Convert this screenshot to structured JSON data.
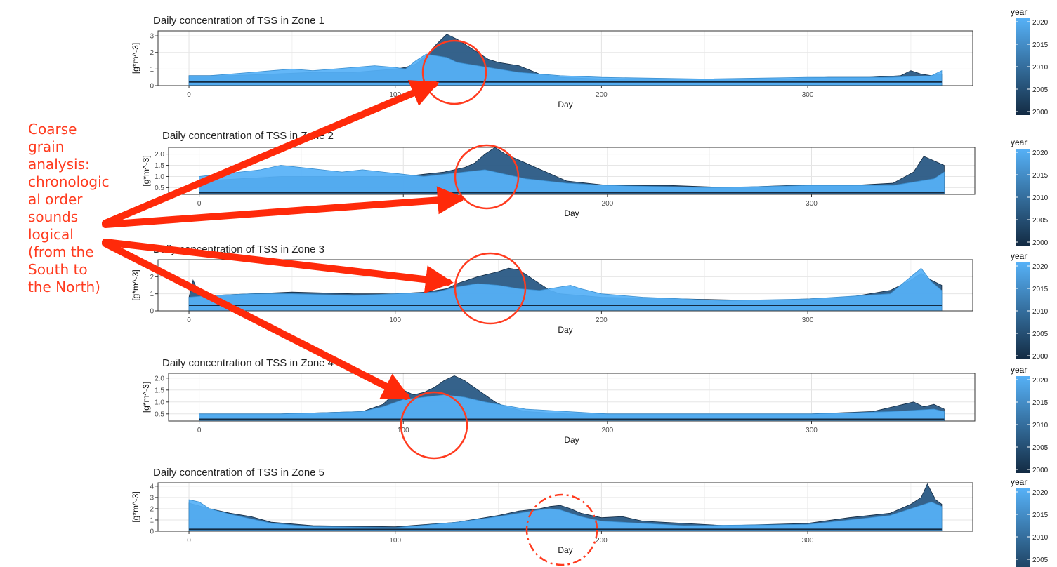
{
  "annotation": {
    "text": "Coarse\ngrain\nanalysis:\nchronologic\nal order\nsounds\nlogical\n(from the\nSouth to\nthe North)",
    "color": "#ff3b1f"
  },
  "legend": {
    "title": "year",
    "ticks": [
      "2020",
      "2015",
      "2010",
      "2005",
      "2000"
    ],
    "color_low": "#132b43",
    "color_high": "#56b1f7"
  },
  "chart_data": [
    {
      "type": "area",
      "title": "Daily concentration of TSS in Zone 1",
      "xlabel": "Day",
      "ylabel": "[g*m^-3]",
      "xlim": [
        -15,
        380
      ],
      "ylim": [
        0,
        3.3
      ],
      "x_ticks": [
        "0",
        "100",
        "200",
        "300"
      ],
      "y_ticks": [
        "0",
        "1",
        "2",
        "3"
      ],
      "x_data_start": 0,
      "grid": true,
      "series": [
        {
          "year_group": "dark",
          "x": [
            0,
            20,
            40,
            60,
            80,
            90,
            100,
            105,
            110,
            115,
            120,
            125,
            130,
            135,
            140,
            145,
            150,
            155,
            160,
            170,
            180,
            200,
            230,
            260,
            290,
            310,
            330,
            345,
            350,
            355,
            360,
            365
          ],
          "values": [
            0.6,
            0.6,
            0.7,
            0.8,
            0.8,
            0.9,
            1.0,
            1.1,
            1.3,
            1.8,
            2.5,
            3.1,
            2.8,
            2.4,
            2.0,
            1.6,
            1.4,
            1.3,
            1.2,
            0.7,
            0.5,
            0.4,
            0.4,
            0.4,
            0.4,
            0.5,
            0.5,
            0.6,
            0.9,
            0.7,
            0.6,
            0.7
          ]
        },
        {
          "year_group": "light",
          "x": [
            0,
            10,
            20,
            30,
            40,
            50,
            60,
            70,
            80,
            90,
            100,
            105,
            110,
            115,
            120,
            125,
            130,
            140,
            150,
            160,
            180,
            200,
            250,
            300,
            340,
            360,
            365
          ],
          "values": [
            0.6,
            0.6,
            0.7,
            0.8,
            0.9,
            1.0,
            0.9,
            1.0,
            1.1,
            1.2,
            1.1,
            1.0,
            1.5,
            1.9,
            1.8,
            1.7,
            1.4,
            1.2,
            1.0,
            0.8,
            0.6,
            0.5,
            0.4,
            0.5,
            0.5,
            0.6,
            0.9
          ]
        }
      ]
    },
    {
      "type": "area",
      "title": "Daily concentration of TSS in Zone 2",
      "xlabel": "Day",
      "ylabel": "[g*m^-3]",
      "xlim": [
        -15,
        380
      ],
      "ylim": [
        0.2,
        2.3
      ],
      "x_ticks": [
        "0",
        "100",
        "200",
        "300"
      ],
      "y_ticks": [
        "0.5",
        "1.0",
        "1.5",
        "2.0"
      ],
      "x_data_start": 0,
      "grid": true,
      "series": [
        {
          "year_group": "dark",
          "x": [
            0,
            20,
            40,
            60,
            80,
            100,
            110,
            120,
            130,
            135,
            140,
            145,
            150,
            155,
            160,
            165,
            170,
            180,
            200,
            230,
            260,
            290,
            320,
            340,
            350,
            355,
            360,
            365
          ],
          "values": [
            0.8,
            0.9,
            1.0,
            1.0,
            1.0,
            1.0,
            1.1,
            1.2,
            1.4,
            1.6,
            2.0,
            2.3,
            2.0,
            1.8,
            1.6,
            1.4,
            1.2,
            0.8,
            0.6,
            0.6,
            0.5,
            0.6,
            0.6,
            0.7,
            1.2,
            1.9,
            1.7,
            1.5
          ]
        },
        {
          "year_group": "light",
          "x": [
            0,
            10,
            20,
            30,
            40,
            50,
            60,
            70,
            80,
            90,
            100,
            110,
            120,
            130,
            140,
            150,
            160,
            180,
            200,
            250,
            300,
            340,
            360,
            365
          ],
          "values": [
            1.0,
            1.1,
            1.2,
            1.3,
            1.5,
            1.4,
            1.3,
            1.2,
            1.3,
            1.2,
            1.1,
            1.0,
            1.1,
            1.2,
            1.3,
            1.1,
            0.9,
            0.7,
            0.6,
            0.5,
            0.6,
            0.6,
            0.9,
            1.2
          ]
        }
      ]
    },
    {
      "type": "area",
      "title": "Daily concentration of TSS in Zone 3",
      "xlabel": "Day",
      "ylabel": "[g*m^-3]",
      "xlim": [
        -15,
        380
      ],
      "ylim": [
        0,
        3.0
      ],
      "x_ticks": [
        "0",
        "100",
        "200",
        "300"
      ],
      "y_ticks": [
        "0",
        "1",
        "2"
      ],
      "x_data_start": 0,
      "grid": true,
      "series": [
        {
          "year_group": "dark",
          "x": [
            0,
            2,
            5,
            10,
            30,
            50,
            80,
            100,
            115,
            125,
            130,
            140,
            150,
            155,
            160,
            165,
            170,
            175,
            180,
            200,
            240,
            280,
            320,
            340,
            350,
            355,
            360,
            365
          ],
          "values": [
            0.8,
            1.8,
            1.0,
            0.9,
            1.0,
            1.1,
            1.0,
            1.0,
            1.1,
            1.3,
            1.6,
            2.0,
            2.3,
            2.5,
            2.4,
            2.0,
            1.6,
            1.2,
            1.0,
            0.8,
            0.7,
            0.6,
            0.8,
            1.2,
            1.8,
            2.2,
            1.8,
            1.5
          ]
        },
        {
          "year_group": "light",
          "x": [
            0,
            10,
            30,
            50,
            80,
            100,
            120,
            130,
            140,
            150,
            160,
            170,
            180,
            185,
            190,
            200,
            220,
            260,
            300,
            340,
            355,
            360,
            365
          ],
          "values": [
            0.8,
            0.9,
            1.0,
            1.0,
            0.9,
            1.0,
            1.1,
            1.4,
            1.6,
            1.5,
            1.3,
            1.2,
            1.4,
            1.5,
            1.3,
            1.0,
            0.8,
            0.6,
            0.7,
            1.0,
            2.5,
            1.7,
            1.2
          ]
        }
      ]
    },
    {
      "type": "area",
      "title": "Daily concentration of TSS in Zone 4",
      "xlabel": "Day",
      "ylabel": "[g*m^-3]",
      "xlim": [
        -15,
        380
      ],
      "ylim": [
        0.2,
        2.2
      ],
      "x_ticks": [
        "0",
        "100",
        "200",
        "300"
      ],
      "y_ticks": [
        "0.5",
        "1.0",
        "1.5",
        "2.0"
      ],
      "x_data_start": 0,
      "grid": true,
      "series": [
        {
          "year_group": "dark",
          "x": [
            0,
            40,
            80,
            90,
            95,
            100,
            105,
            110,
            115,
            120,
            125,
            130,
            135,
            140,
            145,
            150,
            160,
            180,
            220,
            260,
            300,
            330,
            345,
            350,
            355,
            360,
            365
          ],
          "values": [
            0.5,
            0.5,
            0.6,
            0.9,
            1.3,
            1.5,
            1.3,
            1.4,
            1.6,
            1.9,
            2.1,
            1.9,
            1.6,
            1.3,
            1.0,
            0.8,
            0.6,
            0.5,
            0.5,
            0.5,
            0.5,
            0.6,
            0.9,
            1.0,
            0.8,
            0.9,
            0.7
          ]
        },
        {
          "year_group": "light",
          "x": [
            0,
            40,
            80,
            90,
            100,
            110,
            120,
            130,
            140,
            160,
            200,
            260,
            300,
            340,
            360,
            365
          ],
          "values": [
            0.5,
            0.5,
            0.6,
            0.8,
            1.1,
            1.2,
            1.3,
            1.2,
            1.0,
            0.7,
            0.5,
            0.5,
            0.5,
            0.6,
            0.7,
            0.6
          ]
        }
      ]
    },
    {
      "type": "area",
      "title": "Daily concentration of TSS in Zone 5",
      "xlabel": "Day",
      "ylabel": "[g*m^-3]",
      "xlim": [
        -15,
        380
      ],
      "ylim": [
        0,
        4.3
      ],
      "x_ticks": [
        "0",
        "100",
        "200",
        "300"
      ],
      "y_ticks": [
        "0",
        "1",
        "2",
        "3",
        "4"
      ],
      "x_data_start": 0,
      "grid": true,
      "series": [
        {
          "year_group": "dark",
          "x": [
            0,
            10,
            20,
            30,
            40,
            60,
            100,
            130,
            150,
            160,
            170,
            175,
            180,
            185,
            190,
            200,
            210,
            220,
            260,
            300,
            320,
            340,
            350,
            355,
            358,
            362,
            365
          ],
          "values": [
            2.5,
            2.0,
            1.6,
            1.3,
            0.8,
            0.5,
            0.4,
            0.8,
            1.4,
            1.8,
            2.0,
            2.2,
            2.3,
            2.0,
            1.6,
            1.2,
            1.3,
            0.9,
            0.5,
            0.7,
            1.2,
            1.6,
            2.4,
            3.0,
            4.2,
            2.8,
            2.4
          ]
        },
        {
          "year_group": "light",
          "x": [
            0,
            5,
            10,
            20,
            30,
            40,
            60,
            100,
            130,
            150,
            160,
            170,
            175,
            180,
            190,
            200,
            240,
            300,
            320,
            340,
            350,
            360,
            365
          ],
          "values": [
            2.8,
            2.6,
            2.0,
            1.5,
            1.1,
            0.7,
            0.4,
            0.3,
            0.8,
            1.3,
            1.6,
            1.9,
            2.0,
            1.9,
            1.3,
            0.9,
            0.5,
            0.6,
            1.0,
            1.4,
            2.0,
            2.6,
            2.2
          ]
        }
      ]
    }
  ]
}
